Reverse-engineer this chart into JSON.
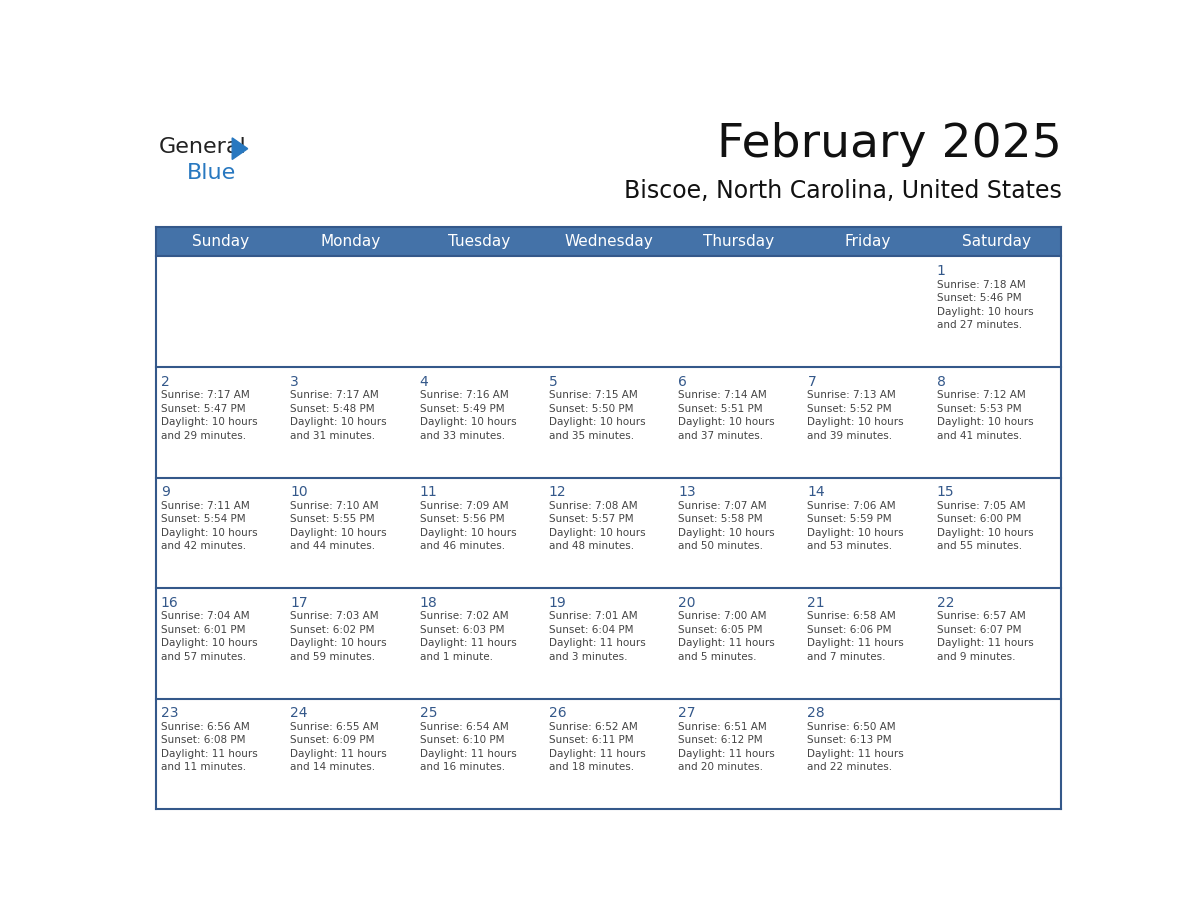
{
  "title": "February 2025",
  "subtitle": "Biscoe, North Carolina, United States",
  "header_color": "#4472a8",
  "header_text_color": "#ffffff",
  "cell_bg_color": "#ffffff",
  "row_sep_color": "#34588a",
  "day_number_color": "#34588a",
  "text_color": "#444444",
  "days_of_week": [
    "Sunday",
    "Monday",
    "Tuesday",
    "Wednesday",
    "Thursday",
    "Friday",
    "Saturday"
  ],
  "weeks": [
    [
      {
        "day": "",
        "sunrise": "",
        "sunset": "",
        "daylight": ""
      },
      {
        "day": "",
        "sunrise": "",
        "sunset": "",
        "daylight": ""
      },
      {
        "day": "",
        "sunrise": "",
        "sunset": "",
        "daylight": ""
      },
      {
        "day": "",
        "sunrise": "",
        "sunset": "",
        "daylight": ""
      },
      {
        "day": "",
        "sunrise": "",
        "sunset": "",
        "daylight": ""
      },
      {
        "day": "",
        "sunrise": "",
        "sunset": "",
        "daylight": ""
      },
      {
        "day": "1",
        "sunrise": "7:18 AM",
        "sunset": "5:46 PM",
        "daylight": "10 hours\nand 27 minutes."
      }
    ],
    [
      {
        "day": "2",
        "sunrise": "7:17 AM",
        "sunset": "5:47 PM",
        "daylight": "10 hours\nand 29 minutes."
      },
      {
        "day": "3",
        "sunrise": "7:17 AM",
        "sunset": "5:48 PM",
        "daylight": "10 hours\nand 31 minutes."
      },
      {
        "day": "4",
        "sunrise": "7:16 AM",
        "sunset": "5:49 PM",
        "daylight": "10 hours\nand 33 minutes."
      },
      {
        "day": "5",
        "sunrise": "7:15 AM",
        "sunset": "5:50 PM",
        "daylight": "10 hours\nand 35 minutes."
      },
      {
        "day": "6",
        "sunrise": "7:14 AM",
        "sunset": "5:51 PM",
        "daylight": "10 hours\nand 37 minutes."
      },
      {
        "day": "7",
        "sunrise": "7:13 AM",
        "sunset": "5:52 PM",
        "daylight": "10 hours\nand 39 minutes."
      },
      {
        "day": "8",
        "sunrise": "7:12 AM",
        "sunset": "5:53 PM",
        "daylight": "10 hours\nand 41 minutes."
      }
    ],
    [
      {
        "day": "9",
        "sunrise": "7:11 AM",
        "sunset": "5:54 PM",
        "daylight": "10 hours\nand 42 minutes."
      },
      {
        "day": "10",
        "sunrise": "7:10 AM",
        "sunset": "5:55 PM",
        "daylight": "10 hours\nand 44 minutes."
      },
      {
        "day": "11",
        "sunrise": "7:09 AM",
        "sunset": "5:56 PM",
        "daylight": "10 hours\nand 46 minutes."
      },
      {
        "day": "12",
        "sunrise": "7:08 AM",
        "sunset": "5:57 PM",
        "daylight": "10 hours\nand 48 minutes."
      },
      {
        "day": "13",
        "sunrise": "7:07 AM",
        "sunset": "5:58 PM",
        "daylight": "10 hours\nand 50 minutes."
      },
      {
        "day": "14",
        "sunrise": "7:06 AM",
        "sunset": "5:59 PM",
        "daylight": "10 hours\nand 53 minutes."
      },
      {
        "day": "15",
        "sunrise": "7:05 AM",
        "sunset": "6:00 PM",
        "daylight": "10 hours\nand 55 minutes."
      }
    ],
    [
      {
        "day": "16",
        "sunrise": "7:04 AM",
        "sunset": "6:01 PM",
        "daylight": "10 hours\nand 57 minutes."
      },
      {
        "day": "17",
        "sunrise": "7:03 AM",
        "sunset": "6:02 PM",
        "daylight": "10 hours\nand 59 minutes."
      },
      {
        "day": "18",
        "sunrise": "7:02 AM",
        "sunset": "6:03 PM",
        "daylight": "11 hours\nand 1 minute."
      },
      {
        "day": "19",
        "sunrise": "7:01 AM",
        "sunset": "6:04 PM",
        "daylight": "11 hours\nand 3 minutes."
      },
      {
        "day": "20",
        "sunrise": "7:00 AM",
        "sunset": "6:05 PM",
        "daylight": "11 hours\nand 5 minutes."
      },
      {
        "day": "21",
        "sunrise": "6:58 AM",
        "sunset": "6:06 PM",
        "daylight": "11 hours\nand 7 minutes."
      },
      {
        "day": "22",
        "sunrise": "6:57 AM",
        "sunset": "6:07 PM",
        "daylight": "11 hours\nand 9 minutes."
      }
    ],
    [
      {
        "day": "23",
        "sunrise": "6:56 AM",
        "sunset": "6:08 PM",
        "daylight": "11 hours\nand 11 minutes."
      },
      {
        "day": "24",
        "sunrise": "6:55 AM",
        "sunset": "6:09 PM",
        "daylight": "11 hours\nand 14 minutes."
      },
      {
        "day": "25",
        "sunrise": "6:54 AM",
        "sunset": "6:10 PM",
        "daylight": "11 hours\nand 16 minutes."
      },
      {
        "day": "26",
        "sunrise": "6:52 AM",
        "sunset": "6:11 PM",
        "daylight": "11 hours\nand 18 minutes."
      },
      {
        "day": "27",
        "sunrise": "6:51 AM",
        "sunset": "6:12 PM",
        "daylight": "11 hours\nand 20 minutes."
      },
      {
        "day": "28",
        "sunrise": "6:50 AM",
        "sunset": "6:13 PM",
        "daylight": "11 hours\nand 22 minutes."
      },
      {
        "day": "",
        "sunrise": "",
        "sunset": "",
        "daylight": ""
      }
    ]
  ],
  "logo_general_color": "#222222",
  "logo_blue_color": "#2878c0",
  "logo_triangle_color": "#2878c0",
  "title_fontsize": 34,
  "subtitle_fontsize": 17,
  "header_fontsize": 11,
  "day_number_fontsize": 10,
  "cell_text_fontsize": 7.5
}
